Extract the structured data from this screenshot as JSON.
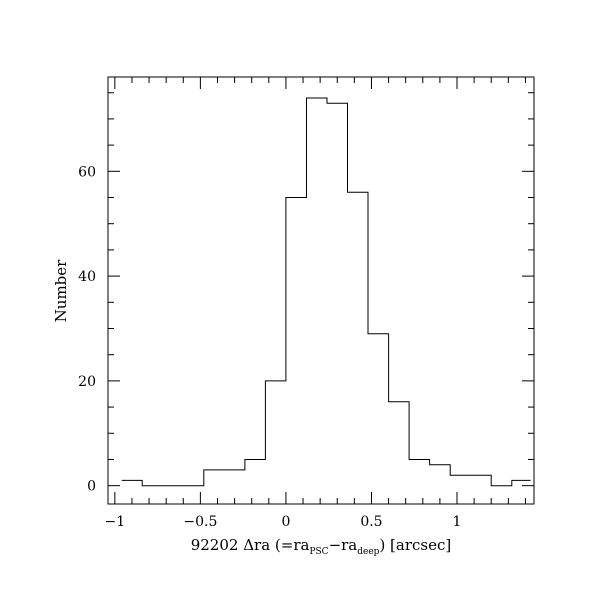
{
  "chart_data": {
    "type": "histogram",
    "xlabel_parts": {
      "prefix": "92202 Δra (=ra",
      "sub1": "PSC",
      "mid": "−ra",
      "sub2": "deep",
      "suffix": ") [arcsec]"
    },
    "ylabel": "Number",
    "xlim": [
      -1.04,
      1.45
    ],
    "ylim": [
      -3.5,
      78
    ],
    "x_ticks": [
      -1,
      -0.5,
      0,
      0.5,
      1
    ],
    "x_tick_labels": [
      "−1",
      "−0.5",
      "0",
      "0.5",
      "1"
    ],
    "x_minor_step": 0.1,
    "y_ticks": [
      0,
      20,
      40,
      60
    ],
    "y_tick_labels": [
      "0",
      "20",
      "40",
      "60"
    ],
    "y_minor_step": 5,
    "bin_edges": [
      -0.96,
      -0.84,
      -0.72,
      -0.6,
      -0.48,
      -0.36,
      -0.24,
      -0.12,
      0.0,
      0.12,
      0.24,
      0.36,
      0.48,
      0.6,
      0.72,
      0.84,
      0.96,
      1.08,
      1.2,
      1.32,
      1.43
    ],
    "counts": [
      1,
      0,
      0,
      0,
      3,
      3,
      5,
      20,
      55,
      74,
      73,
      56,
      29,
      16,
      5,
      4,
      2,
      2,
      0,
      1
    ],
    "grid": false,
    "legend": "none"
  }
}
